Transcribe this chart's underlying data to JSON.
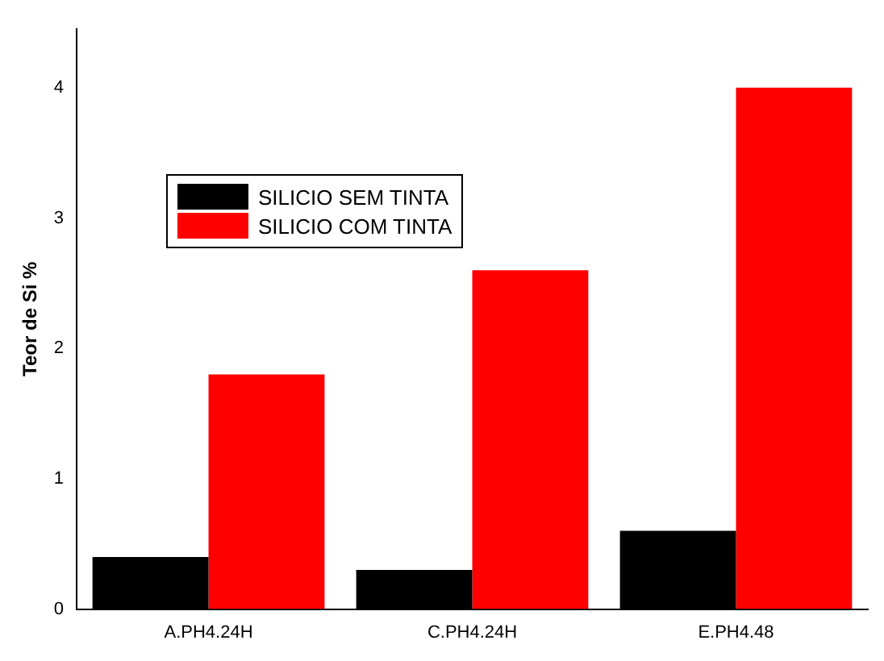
{
  "chart_data": {
    "type": "bar",
    "ylabel": "Teor de Si %",
    "categories": [
      "A.PH4.24H",
      "C.PH4.24H",
      "E.PH4.48"
    ],
    "series": [
      {
        "name": "SILICIO SEM TINTA",
        "color": "#000000",
        "values": [
          0.4,
          0.3,
          0.6
        ]
      },
      {
        "name": "SILICIO COM TINTA",
        "color": "#ff0000",
        "values": [
          1.8,
          2.6,
          4.0
        ]
      }
    ],
    "ylim": [
      0,
      4.45
    ],
    "yticks": [
      0,
      1,
      2,
      3,
      4
    ],
    "grid": false,
    "legend": "top left"
  }
}
